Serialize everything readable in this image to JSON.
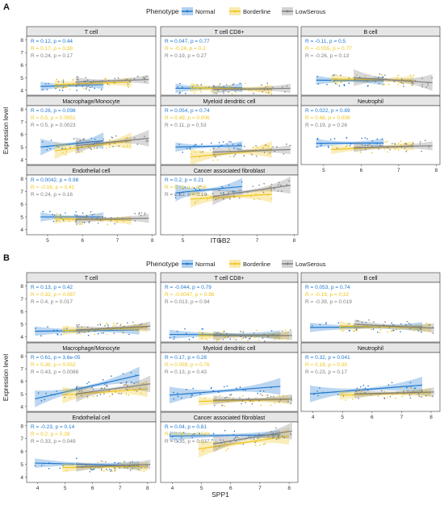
{
  "colors": {
    "Normal": "#1f78d1",
    "Borderline": "#f0c419",
    "LowSerous": "#7f7f7f",
    "strip": "#e6e6e6",
    "frame": "#333333"
  },
  "legend": {
    "title": "Phenotype",
    "items": [
      "Normal",
      "Borderline",
      "LowSerous"
    ]
  },
  "ylabel": "Expression level",
  "y_ticks": [
    4,
    5,
    6,
    7,
    8
  ],
  "chart_data": [
    {
      "type": "scatter",
      "panel_label": "A",
      "xlabel": "ITGB2",
      "x_ticks": [
        5,
        6,
        7,
        8
      ],
      "xlim": [
        4.4,
        8.1
      ],
      "ylim": [
        3.6,
        8.3
      ],
      "facets": [
        {
          "title": "T cell",
          "stats": [
            "R = 0.12, p = 0.44",
            "R = 0.17, p = 0.38",
            "R = 0.24, p = 0.17"
          ],
          "lines": {
            "Normal": [
              4.8,
              6.6,
              4.3,
              4.45
            ],
            "Borderline": [
              5.2,
              7.4,
              4.45,
              4.65
            ],
            "LowSerous": [
              5.8,
              7.9,
              4.65,
              4.85
            ]
          }
        },
        {
          "title": "T cell CD8+",
          "stats": [
            "R = 0.047, p = 0.77",
            "R = -0.24, p = 0.2",
            "R = 0.19, p = 0.27"
          ],
          "lines": {
            "Normal": [
              4.8,
              6.6,
              4.15,
              4.2
            ],
            "Borderline": [
              5.2,
              7.4,
              4.2,
              4.05
            ],
            "LowSerous": [
              5.8,
              7.9,
              4.05,
              4.15
            ]
          }
        },
        {
          "title": "B cell",
          "stats": [
            "R = -0.11, p = 0.5",
            "R = -0.055, p = 0.77",
            "R = -0.26, p = 0.13"
          ],
          "lines": {
            "Normal": [
              4.8,
              6.6,
              4.8,
              4.75
            ],
            "Borderline": [
              5.2,
              7.4,
              4.9,
              4.8
            ],
            "LowSerous": [
              5.8,
              7.9,
              5.0,
              4.6
            ]
          }
        },
        {
          "title": "Macrophage/Monocyte",
          "stats": [
            "R = 0.26, p = 0.098",
            "R = 0.5, p = 0.0051",
            "R = 0.5, p = 0.0023"
          ],
          "lines": {
            "Normal": [
              4.8,
              6.6,
              5.0,
              5.5
            ],
            "Borderline": [
              5.2,
              7.4,
              4.7,
              5.5
            ],
            "LowSerous": [
              5.8,
              7.9,
              5.1,
              5.7
            ]
          }
        },
        {
          "title": "Myeloid dendritic cell",
          "stats": [
            "R = 0.054, p = 0.74",
            "R = 0.49, p = 0.006",
            "R = 0.11, p = 0.53"
          ],
          "lines": {
            "Normal": [
              4.8,
              6.6,
              5.0,
              5.1
            ],
            "Borderline": [
              5.2,
              7.4,
              4.2,
              4.8
            ],
            "LowSerous": [
              5.8,
              7.9,
              4.6,
              4.8
            ]
          }
        },
        {
          "title": "Neutrophil",
          "stats": [
            "R = 0.022, p = 0.89",
            "R = 0.48, p = 0.008",
            "R = 0.19, p = 0.26"
          ],
          "lines": {
            "Normal": [
              4.8,
              6.6,
              5.3,
              5.32
            ],
            "Borderline": [
              5.2,
              7.4,
              4.8,
              5.1
            ],
            "LowSerous": [
              5.8,
              7.9,
              4.95,
              5.1
            ]
          }
        },
        {
          "title": "Endothelial cell",
          "stats": [
            "R = 0.0042, p = 0.98",
            "R = -0.16, p = 0.41",
            "R = 0.24, p = 0.16"
          ],
          "lines": {
            "Normal": [
              4.8,
              6.6,
              5.0,
              5.0
            ],
            "Borderline": [
              5.2,
              7.4,
              4.85,
              4.75
            ],
            "LowSerous": [
              5.8,
              7.9,
              4.8,
              4.9
            ]
          }
        },
        {
          "title": "Cancer associated fibroblast",
          "stats": [
            "R = 0.2, p = 0.21",
            "R = 0.11, p = 0.56",
            "R = 0.22, p = 0.19"
          ],
          "lines": {
            "Normal": [
              4.8,
              6.6,
              6.9,
              7.4
            ],
            "Borderline": [
              5.2,
              7.4,
              6.4,
              6.8
            ],
            "LowSerous": [
              5.8,
              7.9,
              6.6,
              7.5
            ]
          }
        }
      ]
    },
    {
      "type": "scatter",
      "panel_label": "B",
      "xlabel": "SPP1",
      "x_ticks": [
        4,
        5,
        6,
        7,
        8
      ],
      "xlim": [
        3.6,
        8.3
      ],
      "ylim": [
        3.6,
        8.3
      ],
      "facets": [
        {
          "title": "T cell",
          "stats": [
            "R = 0.13, p = 0.42",
            "R = 0.32, p = 0.087",
            "R = 0.4, p = 0.017"
          ],
          "lines": {
            "Normal": [
              3.9,
              7.7,
              4.45,
              4.55
            ],
            "Borderline": [
              4.9,
              8.0,
              4.5,
              4.75
            ],
            "LowSerous": [
              5.4,
              8.1,
              4.55,
              4.85
            ]
          }
        },
        {
          "title": "T cell CD8+",
          "stats": [
            "R = -0.044, p = 0.79",
            "R = -0.0047, p = 0.98",
            "R = 0.013, p = 0.94"
          ],
          "lines": {
            "Normal": [
              3.9,
              7.7,
              4.2,
              4.15
            ],
            "Borderline": [
              4.9,
              8.0,
              4.1,
              4.1
            ],
            "LowSerous": [
              5.4,
              8.1,
              4.1,
              4.12
            ]
          }
        },
        {
          "title": "B cell",
          "stats": [
            "R = 0.053, p = 0.74",
            "R = -0.19, p = 0.32",
            "R = -0.39, p = 0.019"
          ],
          "lines": {
            "Normal": [
              3.9,
              7.7,
              4.75,
              4.8
            ],
            "Borderline": [
              4.9,
              8.0,
              4.85,
              4.7
            ],
            "LowSerous": [
              5.4,
              8.1,
              5.0,
              4.7
            ]
          }
        },
        {
          "title": "Macrophage/Monocyte",
          "stats": [
            "R = 0.61, p = 3.6e-05",
            "R = 0.36, p = 0.052",
            "R = 0.43, p = 0.0088"
          ],
          "lines": {
            "Normal": [
              3.9,
              7.7,
              4.6,
              6.5
            ],
            "Borderline": [
              4.9,
              8.0,
              4.9,
              5.4
            ],
            "LowSerous": [
              5.4,
              8.1,
              5.0,
              5.8
            ]
          }
        },
        {
          "title": "Myeloid dendritic cell",
          "stats": [
            "R = 0.17, p = 0.28",
            "R = 0.059, p = 0.76",
            "R = 0.13, p = 0.43"
          ],
          "lines": {
            "Normal": [
              3.9,
              7.7,
              4.9,
              5.6
            ],
            "Borderline": [
              4.9,
              8.0,
              4.4,
              4.55
            ],
            "LowSerous": [
              5.4,
              8.1,
              4.5,
              4.6
            ]
          }
        },
        {
          "title": "Neutrophil",
          "stats": [
            "R = 0.32, p = 0.041",
            "R = 0.19, p = 0.35",
            "R = 0.23, p = 0.17"
          ],
          "lines": {
            "Normal": [
              3.9,
              7.7,
              5.0,
              5.7
            ],
            "Borderline": [
              4.9,
              8.0,
              4.9,
              5.1
            ],
            "LowSerous": [
              5.4,
              8.1,
              5.0,
              5.15
            ]
          }
        },
        {
          "title": "Endothelial cell",
          "stats": [
            "R = -0.23, p = 0.14",
            "R = 0.2, p = 0.28",
            "R = 0.33, p = 0.049"
          ],
          "lines": {
            "Normal": [
              3.9,
              7.7,
              5.1,
              4.9
            ],
            "Borderline": [
              4.9,
              8.0,
              4.75,
              4.85
            ],
            "LowSerous": [
              5.4,
              8.1,
              4.8,
              5.0
            ]
          }
        },
        {
          "title": "Cancer associated fibroblast",
          "stats": [
            "R = 0.04, p = 0.81",
            "R = 0.36, p = 0.048",
            "R = 0.35, p = 0.037"
          ],
          "lines": {
            "Normal": [
              3.9,
              7.7,
              7.2,
              7.3
            ],
            "Borderline": [
              4.9,
              8.0,
              6.2,
              7.2
            ],
            "LowSerous": [
              5.4,
              8.1,
              6.6,
              7.6
            ]
          }
        }
      ]
    }
  ]
}
